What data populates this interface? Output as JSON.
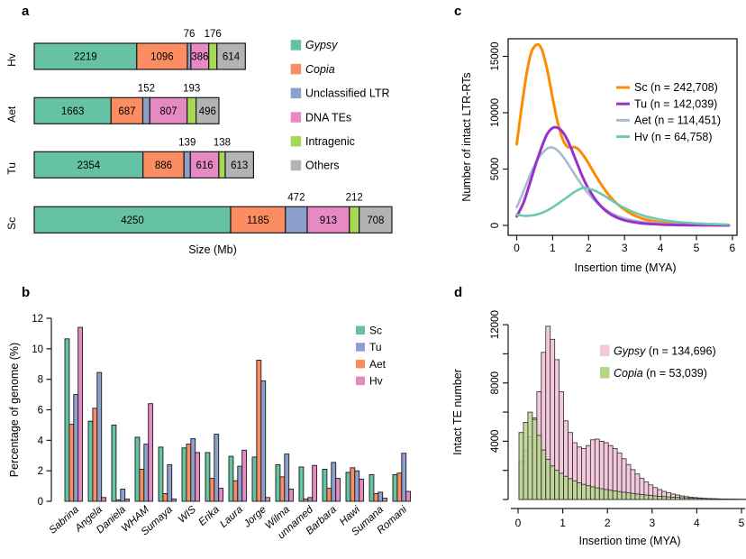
{
  "panels": {
    "a": "a",
    "b": "b",
    "c": "c",
    "d": "d"
  },
  "colors": {
    "gypsy": "#66C2A5",
    "copia": "#FC8D62",
    "unclassified_ltr": "#8DA0CB",
    "dna_tes": "#E78AC3",
    "intragenic": "#A6D854",
    "others": "#B3B3B3",
    "line_sc": "#FF8C00",
    "line_tu": "#9932CC",
    "line_aet": "#A9BAD6",
    "line_hv": "#6FC7AE",
    "hist_gypsy": "#F5C9DD",
    "hist_copia": "#B5D689",
    "blue_label": "#4169E1",
    "outline": "#1a1a1a"
  },
  "chart_data": [
    {
      "id": "a",
      "type": "bar",
      "subtype": "stacked-horizontal",
      "xlabel": "Size (Mb)",
      "categories": [
        "Hv",
        "Aet",
        "Tu",
        "Sc"
      ],
      "series": [
        {
          "name": "Gypsy",
          "italic": true,
          "color_key": "gypsy",
          "label_pos": "inside",
          "values": [
            2219,
            1663,
            2354,
            4250
          ]
        },
        {
          "name": "Copia",
          "italic": true,
          "color_key": "copia",
          "label_pos": "inside",
          "values": [
            1096,
            687,
            886,
            1185
          ]
        },
        {
          "name": "Unclassified LTR",
          "italic": false,
          "color_key": "unclassified_ltr",
          "label_pos": "above",
          "values": [
            76,
            152,
            139,
            472
          ]
        },
        {
          "name": "DNA TEs",
          "italic": false,
          "color_key": "dna_tes",
          "label_pos": "inside",
          "values": [
            386,
            807,
            616,
            913
          ]
        },
        {
          "name": "Intragenic",
          "italic": false,
          "color_key": "intragenic",
          "label_pos": "above",
          "values": [
            176,
            193,
            138,
            212
          ]
        },
        {
          "name": "Others",
          "italic": false,
          "color_key": "others",
          "label_pos": "inside",
          "values": [
            614,
            496,
            613,
            708
          ]
        }
      ]
    },
    {
      "id": "b",
      "type": "bar",
      "subtype": "grouped-vertical",
      "ylabel": "Percentage of genome (%)",
      "ylim": [
        0,
        12
      ],
      "yticks": [
        0,
        2,
        4,
        6,
        8,
        10,
        12
      ],
      "categories": [
        "Sabrina",
        "Angela",
        "Daniela",
        "WHAM",
        "Sumaya",
        "WIS",
        "Erika",
        "Laura",
        "Jorge",
        "Wilma",
        "unnamed",
        "Barbara",
        "Hawi",
        "Sumana",
        "Romani"
      ],
      "blue_categories": [
        "Daniela",
        "Sumaya",
        "Sumana"
      ],
      "legend_order": [
        "Sc",
        "Tu",
        "Aet",
        "Hv"
      ],
      "series": [
        {
          "name": "Sc",
          "color_key": "gypsy",
          "values": [
            10.65,
            5.25,
            5.0,
            4.2,
            3.55,
            3.5,
            3.2,
            2.95,
            2.9,
            2.4,
            2.25,
            2.1,
            1.9,
            1.75,
            1.75
          ]
        },
        {
          "name": "Aet",
          "color_key": "copia",
          "values": [
            5.05,
            6.1,
            0.1,
            2.1,
            0.5,
            3.75,
            1.5,
            1.35,
            9.25,
            1.6,
            0.15,
            0.85,
            2.2,
            0.5,
            1.85
          ]
        },
        {
          "name": "Tu",
          "color_key": "unclassified_ltr",
          "values": [
            7.0,
            8.45,
            0.8,
            3.75,
            2.4,
            4.1,
            4.4,
            2.3,
            7.9,
            3.1,
            0.25,
            2.55,
            2.0,
            0.6,
            3.15
          ]
        },
        {
          "name": "Hv",
          "color_key": "dna_tes",
          "values": [
            11.4,
            0.25,
            0.15,
            6.4,
            0.15,
            3.2,
            0.85,
            3.35,
            0.25,
            0.8,
            2.35,
            1.5,
            1.45,
            0.2,
            0.65
          ]
        }
      ]
    },
    {
      "id": "c",
      "type": "line",
      "xlabel": "Insertion time (MYA)",
      "ylabel": "Number of intact LTR-RTs",
      "xlim": [
        0,
        6
      ],
      "xticks": [
        0,
        1,
        2,
        3,
        4,
        5,
        6
      ],
      "ylim": [
        0,
        16560
      ],
      "yticks": [
        0,
        5000,
        10000,
        15000
      ],
      "series": [
        {
          "name": "Sc (n = 242,708)",
          "color_key": "line_sc",
          "width": 3,
          "points": [
            [
              0,
              7200
            ],
            [
              0.1,
              9600
            ],
            [
              0.2,
              11900
            ],
            [
              0.3,
              13900
            ],
            [
              0.4,
              15300
            ],
            [
              0.5,
              15900
            ],
            [
              0.6,
              16050
            ],
            [
              0.7,
              15600
            ],
            [
              0.8,
              14500
            ],
            [
              0.9,
              13000
            ],
            [
              1.0,
              11300
            ],
            [
              1.1,
              9700
            ],
            [
              1.2,
              8400
            ],
            [
              1.3,
              7500
            ],
            [
              1.4,
              7000
            ],
            [
              1.5,
              6900
            ],
            [
              1.6,
              6950
            ],
            [
              1.7,
              6800
            ],
            [
              1.8,
              6450
            ],
            [
              1.9,
              6000
            ],
            [
              2.0,
              5500
            ],
            [
              2.2,
              4400
            ],
            [
              2.4,
              3400
            ],
            [
              2.6,
              2550
            ],
            [
              2.8,
              1900
            ],
            [
              3.0,
              1400
            ],
            [
              3.2,
              1000
            ],
            [
              3.4,
              720
            ],
            [
              3.6,
              520
            ],
            [
              3.8,
              380
            ],
            [
              4.0,
              280
            ],
            [
              4.25,
              180
            ],
            [
              4.5,
              120
            ],
            [
              4.75,
              80
            ],
            [
              5.0,
              55
            ],
            [
              5.5,
              25
            ],
            [
              5.9,
              15
            ]
          ]
        },
        {
          "name": "Aet (n = 114,451)",
          "color_key": "line_aet",
          "width": 2.6,
          "points": [
            [
              0,
              1600
            ],
            [
              0.2,
              3100
            ],
            [
              0.4,
              4700
            ],
            [
              0.6,
              5950
            ],
            [
              0.8,
              6700
            ],
            [
              0.9,
              6900
            ],
            [
              1.0,
              6900
            ],
            [
              1.1,
              6750
            ],
            [
              1.2,
              6450
            ],
            [
              1.3,
              6050
            ],
            [
              1.4,
              5600
            ],
            [
              1.5,
              5100
            ],
            [
              1.6,
              4600
            ],
            [
              1.7,
              4100
            ],
            [
              1.8,
              3650
            ],
            [
              1.9,
              3200
            ],
            [
              2.0,
              2800
            ],
            [
              2.2,
              2100
            ],
            [
              2.4,
              1550
            ],
            [
              2.6,
              1150
            ],
            [
              2.8,
              850
            ],
            [
              3.0,
              630
            ],
            [
              3.25,
              440
            ],
            [
              3.5,
              310
            ],
            [
              4.0,
              160
            ],
            [
              4.5,
              85
            ],
            [
              5.0,
              45
            ],
            [
              5.9,
              20
            ]
          ]
        },
        {
          "name": "Tu (n = 142,039)",
          "color_key": "line_tu",
          "width": 3,
          "points": [
            [
              0,
              800
            ],
            [
              0.2,
              2100
            ],
            [
              0.4,
              4100
            ],
            [
              0.6,
              6100
            ],
            [
              0.8,
              7800
            ],
            [
              0.9,
              8350
            ],
            [
              1.0,
              8650
            ],
            [
              1.1,
              8700
            ],
            [
              1.2,
              8550
            ],
            [
              1.3,
              8200
            ],
            [
              1.4,
              7650
            ],
            [
              1.5,
              6950
            ],
            [
              1.6,
              6150
            ],
            [
              1.7,
              5350
            ],
            [
              1.8,
              4550
            ],
            [
              1.9,
              3850
            ],
            [
              2.0,
              3250
            ],
            [
              2.2,
              2250
            ],
            [
              2.4,
              1520
            ],
            [
              2.6,
              1020
            ],
            [
              2.8,
              680
            ],
            [
              3.0,
              460
            ],
            [
              3.25,
              290
            ],
            [
              3.5,
              180
            ],
            [
              4.0,
              80
            ],
            [
              4.5,
              35
            ],
            [
              5.0,
              18
            ],
            [
              5.9,
              8
            ]
          ]
        },
        {
          "name": "Hv (n = 64,758)",
          "color_key": "line_hv",
          "width": 2.6,
          "points": [
            [
              0,
              950
            ],
            [
              0.2,
              850
            ],
            [
              0.4,
              870
            ],
            [
              0.6,
              1000
            ],
            [
              0.8,
              1250
            ],
            [
              1.0,
              1600
            ],
            [
              1.2,
              2050
            ],
            [
              1.4,
              2500
            ],
            [
              1.6,
              2950
            ],
            [
              1.8,
              3280
            ],
            [
              1.9,
              3330
            ],
            [
              2.0,
              3280
            ],
            [
              2.2,
              3050
            ],
            [
              2.4,
              2700
            ],
            [
              2.6,
              2300
            ],
            [
              2.8,
              1900
            ],
            [
              3.0,
              1550
            ],
            [
              3.2,
              1250
            ],
            [
              3.4,
              1000
            ],
            [
              3.6,
              800
            ],
            [
              3.8,
              640
            ],
            [
              4.0,
              510
            ],
            [
              4.25,
              390
            ],
            [
              4.5,
              300
            ],
            [
              4.75,
              230
            ],
            [
              5.0,
              180
            ],
            [
              5.25,
              140
            ],
            [
              5.5,
              110
            ],
            [
              5.9,
              80
            ]
          ]
        }
      ],
      "legend_order": [
        "Sc (n = 242,708)",
        "Tu (n = 142,039)",
        "Aet (n = 114,451)",
        "Hv (n = 64,758)"
      ]
    },
    {
      "id": "d",
      "type": "histogram",
      "xlabel": "Insertion time (MYA)",
      "ylabel": "Intact TE number",
      "xlim": [
        0,
        5
      ],
      "xticks": [
        0,
        1,
        2,
        3,
        4,
        5
      ],
      "ylim": [
        0,
        12400
      ],
      "yticks": [
        0,
        2000,
        4000,
        6000,
        8000,
        10000,
        12000
      ],
      "ytick_labels": [
        4000,
        8000,
        12000
      ],
      "bin_width": 0.1,
      "series": [
        {
          "name": "Gypsy",
          "n_label": " (n = 134,696)",
          "italic_name": true,
          "color_key": "hist_gypsy",
          "values": [
            2600,
            3400,
            4300,
            5600,
            7400,
            10100,
            11900,
            11000,
            9600,
            7400,
            5400,
            4600,
            3900,
            3600,
            3500,
            3700,
            4100,
            4150,
            4000,
            3900,
            3700,
            3500,
            3200,
            2800,
            2400,
            2050,
            1750,
            1450,
            1200,
            1000,
            820,
            680,
            560,
            460,
            380,
            310,
            250,
            200,
            160,
            130,
            105,
            85,
            70,
            55,
            45,
            35,
            28,
            22,
            18,
            14,
            11,
            9
          ]
        },
        {
          "name": "Copia",
          "n_label": " (n = 53,039)",
          "italic_name": true,
          "color_key": "hist_copia",
          "values": [
            4600,
            5300,
            6000,
            5500,
            4400,
            3400,
            2750,
            2300,
            2000,
            1800,
            1600,
            1430,
            1280,
            1150,
            1040,
            950,
            870,
            800,
            740,
            690,
            640,
            590,
            545,
            500,
            460,
            420,
            380,
            345,
            310,
            280,
            250,
            225,
            200,
            178,
            158,
            140,
            124,
            110,
            97,
            85,
            75,
            65,
            57,
            50,
            43,
            37,
            32,
            27,
            23,
            20,
            17,
            15
          ]
        }
      ]
    }
  ]
}
